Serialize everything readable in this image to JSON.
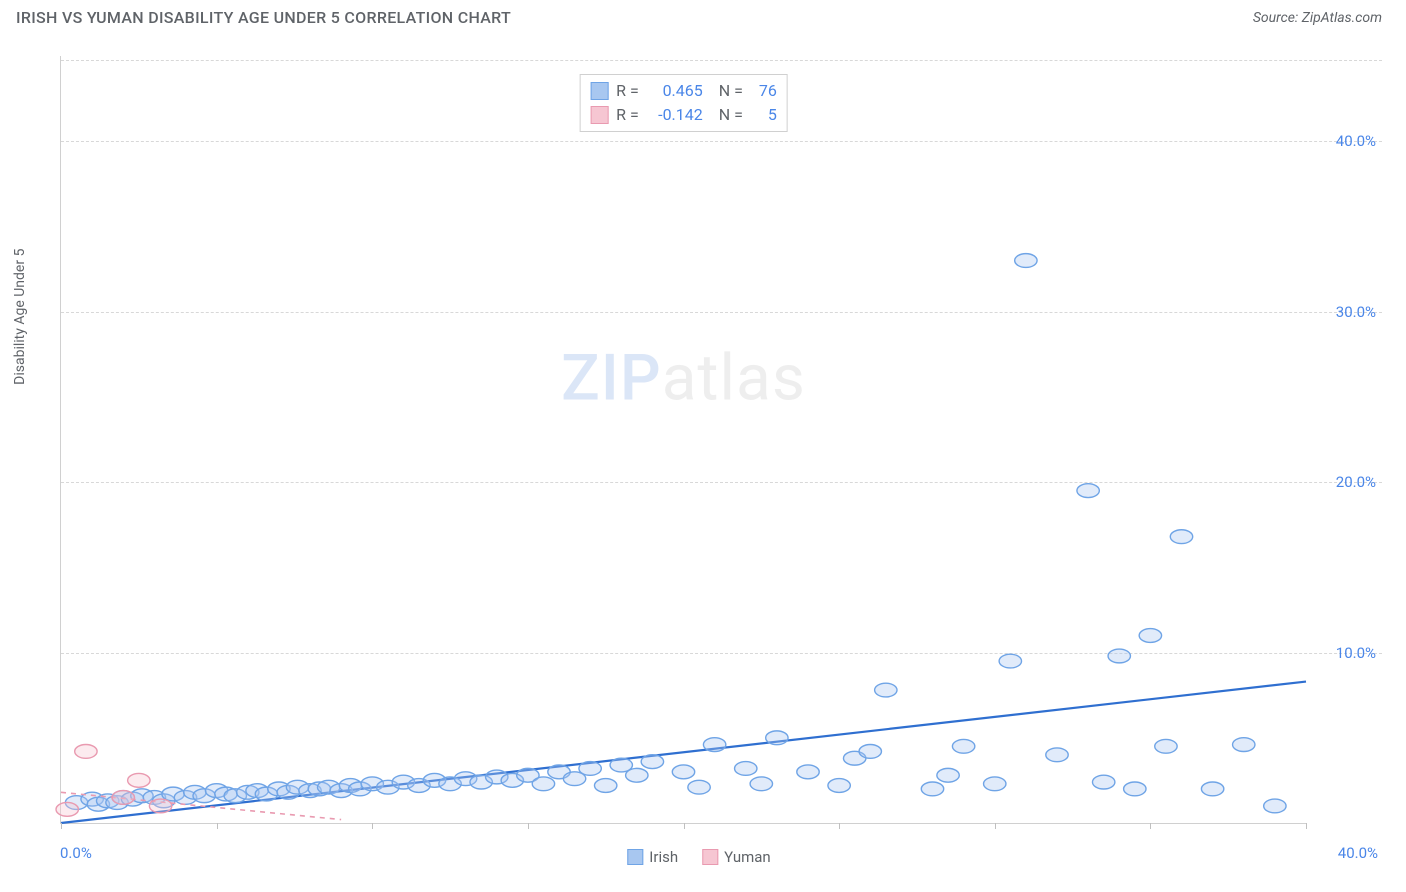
{
  "title": "IRISH VS YUMAN DISABILITY AGE UNDER 5 CORRELATION CHART",
  "source": "Source: ZipAtlas.com",
  "ylabel": "Disability Age Under 5",
  "watermark": {
    "part1": "ZIP",
    "part2": "atlas"
  },
  "chart": {
    "type": "scatter",
    "xlim": [
      0,
      40
    ],
    "ylim": [
      0,
      45
    ],
    "xtick_positions": [
      0,
      5,
      10,
      15,
      20,
      25,
      30,
      35,
      40
    ],
    "x_shown_labels": {
      "start": "0.0%",
      "end": "40.0%"
    },
    "yticks": [
      {
        "v": 10,
        "label": "10.0%"
      },
      {
        "v": 20,
        "label": "20.0%"
      },
      {
        "v": 30,
        "label": "30.0%"
      },
      {
        "v": 40,
        "label": "40.0%"
      }
    ],
    "y_label_color": "#4a86e8",
    "x_label_color": "#4a86e8",
    "grid_color": "#d8d8d8",
    "background_color": "#ffffff",
    "marker_radius": 9,
    "marker_fill_opacity": 0.35,
    "series": [
      {
        "name": "Irish",
        "color_fill": "#a8c7f0",
        "color_stroke": "#6fa4e6",
        "r_value": "0.465",
        "n_value": "76",
        "trend": {
          "x1": 0,
          "y1": 0,
          "x2": 40,
          "y2": 8.3,
          "color": "#2f6fd0",
          "width": 2.2
        },
        "points": [
          [
            0.5,
            1.2
          ],
          [
            1.0,
            1.4
          ],
          [
            1.2,
            1.1
          ],
          [
            1.5,
            1.3
          ],
          [
            1.8,
            1.2
          ],
          [
            2.0,
            1.5
          ],
          [
            2.3,
            1.4
          ],
          [
            2.6,
            1.6
          ],
          [
            3.0,
            1.5
          ],
          [
            3.3,
            1.3
          ],
          [
            3.6,
            1.7
          ],
          [
            4.0,
            1.5
          ],
          [
            4.3,
            1.8
          ],
          [
            4.6,
            1.6
          ],
          [
            5.0,
            1.9
          ],
          [
            5.3,
            1.7
          ],
          [
            5.6,
            1.6
          ],
          [
            6.0,
            1.8
          ],
          [
            6.3,
            1.9
          ],
          [
            6.6,
            1.7
          ],
          [
            7.0,
            2.0
          ],
          [
            7.3,
            1.8
          ],
          [
            7.6,
            2.1
          ],
          [
            8.0,
            1.9
          ],
          [
            8.3,
            2.0
          ],
          [
            8.6,
            2.1
          ],
          [
            9.0,
            1.9
          ],
          [
            9.3,
            2.2
          ],
          [
            9.6,
            2.0
          ],
          [
            10.0,
            2.3
          ],
          [
            10.5,
            2.1
          ],
          [
            11.0,
            2.4
          ],
          [
            11.5,
            2.2
          ],
          [
            12.0,
            2.5
          ],
          [
            12.5,
            2.3
          ],
          [
            13.0,
            2.6
          ],
          [
            13.5,
            2.4
          ],
          [
            14.0,
            2.7
          ],
          [
            14.5,
            2.5
          ],
          [
            15.0,
            2.8
          ],
          [
            15.5,
            2.3
          ],
          [
            16.0,
            3.0
          ],
          [
            16.5,
            2.6
          ],
          [
            17.0,
            3.2
          ],
          [
            17.5,
            2.2
          ],
          [
            18.0,
            3.4
          ],
          [
            18.5,
            2.8
          ],
          [
            19.0,
            3.6
          ],
          [
            20.0,
            3.0
          ],
          [
            20.5,
            2.1
          ],
          [
            21.0,
            4.6
          ],
          [
            22.0,
            3.2
          ],
          [
            22.5,
            2.3
          ],
          [
            23.0,
            5.0
          ],
          [
            24.0,
            3.0
          ],
          [
            25.0,
            2.2
          ],
          [
            25.5,
            3.8
          ],
          [
            26.0,
            4.2
          ],
          [
            26.5,
            7.8
          ],
          [
            28.0,
            2.0
          ],
          [
            28.5,
            2.8
          ],
          [
            29.0,
            4.5
          ],
          [
            30.0,
            2.3
          ],
          [
            30.5,
            9.5
          ],
          [
            31.0,
            33.0
          ],
          [
            32.0,
            4.0
          ],
          [
            33.0,
            19.5
          ],
          [
            33.5,
            2.4
          ],
          [
            34.0,
            9.8
          ],
          [
            35.0,
            11.0
          ],
          [
            35.5,
            4.5
          ],
          [
            36.0,
            16.8
          ],
          [
            37.0,
            2.0
          ],
          [
            38.0,
            4.6
          ],
          [
            39.0,
            1.0
          ],
          [
            34.5,
            2.0
          ]
        ]
      },
      {
        "name": "Yuman",
        "color_fill": "#f6c6d2",
        "color_stroke": "#e99ab0",
        "r_value": "-0.142",
        "n_value": "5",
        "trend": {
          "x1": 0,
          "y1": 1.8,
          "x2": 9,
          "y2": 0.2,
          "color": "#e99ab0",
          "width": 1.6,
          "dash": "5,5"
        },
        "points": [
          [
            0.2,
            0.8
          ],
          [
            0.8,
            4.2
          ],
          [
            2.0,
            1.5
          ],
          [
            2.5,
            2.5
          ],
          [
            3.2,
            1.0
          ]
        ]
      }
    ]
  },
  "bottom_legend": [
    {
      "label": "Irish",
      "fill": "#a8c7f0",
      "stroke": "#6fa4e6"
    },
    {
      "label": "Yuman",
      "fill": "#f6c6d2",
      "stroke": "#e99ab0"
    }
  ]
}
